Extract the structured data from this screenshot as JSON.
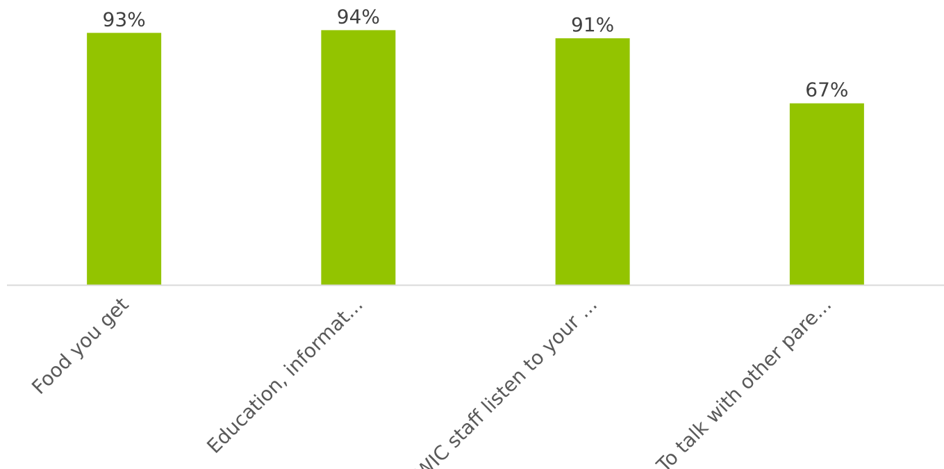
{
  "chart_data": {
    "type": "bar",
    "title": "",
    "xlabel": "",
    "ylabel": "",
    "categories": [
      "Food you get",
      "Education, informat...",
      "WIC staff listen to your ...",
      "To talk with other pare..."
    ],
    "values": [
      93,
      94,
      91,
      67
    ],
    "data_labels": [
      "93%",
      "94%",
      "91%",
      "67%"
    ],
    "value_unit": "%",
    "ylim": [
      0,
      100
    ],
    "grid": false,
    "legend": "none",
    "colors": {
      "bar": "#93c400",
      "axis": "#d9d9d9",
      "data_label": "#404040",
      "tick_label": "#595959"
    }
  }
}
